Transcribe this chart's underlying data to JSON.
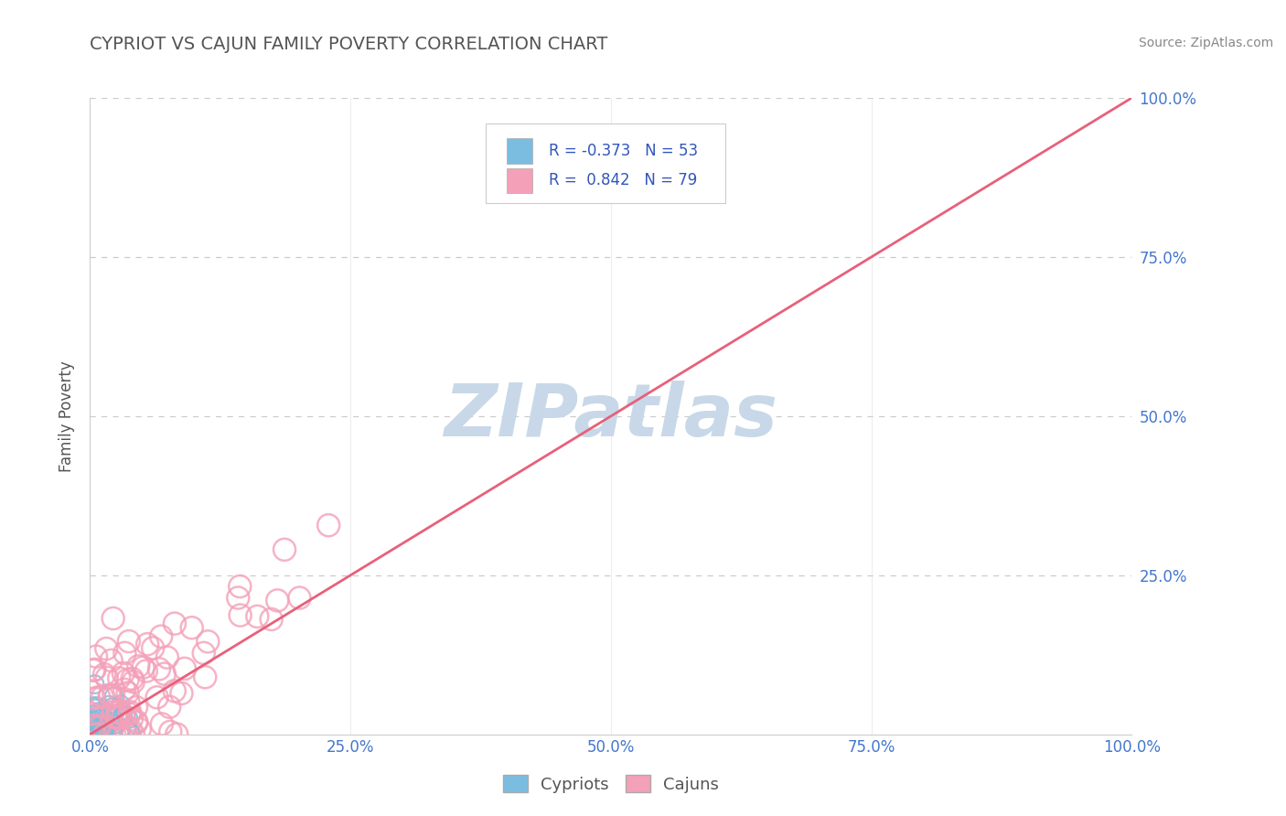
{
  "title": "CYPRIOT VS CAJUN FAMILY POVERTY CORRELATION CHART",
  "source": "Source: ZipAtlas.com",
  "ylabel": "Family Poverty",
  "xlim": [
    0,
    100
  ],
  "ylim": [
    0,
    100
  ],
  "xticks": [
    0,
    25,
    50,
    75,
    100
  ],
  "yticks": [
    0,
    25,
    50,
    75,
    100
  ],
  "xtick_labels": [
    "0.0%",
    "25.0%",
    "50.0%",
    "75.0%",
    "100.0%"
  ],
  "ytick_labels_right": [
    "",
    "25.0%",
    "50.0%",
    "75.0%",
    "100.0%"
  ],
  "cypriot_color": "#7bbde0",
  "cajun_color": "#f4a0b8",
  "cajun_line_color": "#e8607a",
  "cypriot_R": -0.373,
  "cypriot_N": 53,
  "cajun_R": 0.842,
  "cajun_N": 79,
  "legend_labels": [
    "Cypriots",
    "Cajuns"
  ],
  "watermark": "ZIPatlas",
  "watermark_color": "#c8d8e8",
  "background_color": "#ffffff",
  "grid_color": "#cccccc",
  "title_color": "#555555",
  "tick_color": "#4477cc",
  "ylabel_color": "#555555",
  "source_color": "#888888"
}
